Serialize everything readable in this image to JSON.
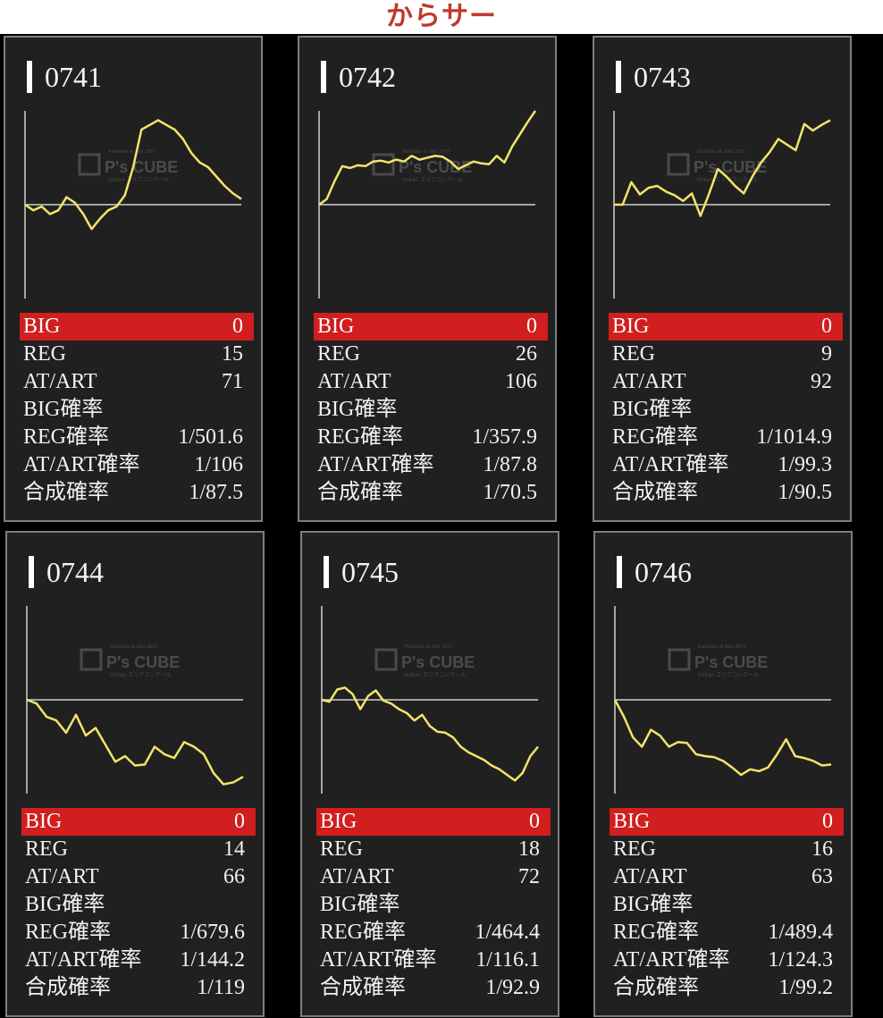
{
  "page": {
    "title": "からサー",
    "title_color": "#c0392b"
  },
  "colors": {
    "panel_bg": "#202020",
    "line": "#f3e46a",
    "axis": "#cfcfcf",
    "big_row": "#d11e1e"
  },
  "watermark": {
    "brand": "P's CUBE",
    "top_text": "Pachinko & Slot 2015",
    "sub_text": "mikan エリアコンクール"
  },
  "labels": {
    "big": "BIG",
    "reg": "REG",
    "at": "AT/ART",
    "big_rate": "BIG確率",
    "reg_rate": "REG確率",
    "at_rate": "AT/ART確率",
    "total_rate": "合成確率"
  },
  "chart_data": [
    {
      "type": "line",
      "title": "0741",
      "x": [
        0,
        1,
        2,
        3,
        4,
        5,
        6,
        7,
        8,
        9,
        10,
        11,
        12,
        13,
        14,
        15,
        16,
        17,
        18,
        19,
        20,
        21,
        22,
        23,
        24,
        25,
        26
      ],
      "y": [
        0,
        -60,
        -20,
        -100,
        -60,
        80,
        20,
        -100,
        -260,
        -150,
        -60,
        -20,
        100,
        400,
        800,
        850,
        900,
        850,
        800,
        700,
        550,
        450,
        400,
        300,
        200,
        120,
        60
      ],
      "ylim": [
        -1000,
        1000
      ],
      "baseline": 0
    },
    {
      "type": "line",
      "title": "0742",
      "x": [
        0,
        1,
        2,
        3,
        4,
        5,
        6,
        7,
        8,
        9,
        10,
        11,
        12,
        13,
        14,
        15,
        16,
        17,
        18,
        19,
        20,
        21,
        22,
        23,
        24,
        25,
        26,
        27,
        28
      ],
      "y": [
        0,
        60,
        250,
        410,
        390,
        420,
        410,
        460,
        470,
        450,
        480,
        460,
        520,
        480,
        500,
        520,
        510,
        460,
        380,
        420,
        460,
        440,
        430,
        520,
        450,
        620,
        750,
        880,
        1000
      ],
      "ylim": [
        -1000,
        1000
      ],
      "baseline": 0
    },
    {
      "type": "line",
      "title": "0743",
      "x": [
        0,
        1,
        2,
        3,
        4,
        5,
        6,
        7,
        8,
        9,
        10,
        11,
        12,
        13,
        14,
        15,
        16,
        17,
        18,
        19,
        20,
        21,
        22,
        23,
        24,
        25
      ],
      "y": [
        0,
        0,
        240,
        110,
        180,
        200,
        140,
        100,
        40,
        120,
        -120,
        120,
        380,
        300,
        200,
        120,
        300,
        450,
        560,
        700,
        640,
        580,
        860,
        790,
        850,
        900
      ],
      "ylim": [
        -1000,
        1000
      ],
      "baseline": 0
    },
    {
      "type": "line",
      "title": "0744",
      "x": [
        0,
        1,
        2,
        3,
        4,
        5,
        6,
        7,
        8,
        9,
        10,
        11,
        12,
        13,
        14,
        15,
        16,
        17,
        18,
        19,
        20,
        21,
        22
      ],
      "y": [
        0,
        -40,
        -180,
        -220,
        -350,
        -160,
        -380,
        -300,
        -480,
        -660,
        -600,
        -700,
        -690,
        -500,
        -580,
        -620,
        -450,
        -500,
        -580,
        -780,
        -900,
        -880,
        -820
      ],
      "ylim": [
        -1000,
        1000
      ],
      "baseline": 0
    },
    {
      "type": "line",
      "title": "0745",
      "x": [
        0,
        1,
        2,
        3,
        4,
        5,
        6,
        7,
        8,
        9,
        10,
        11,
        12,
        13,
        14,
        15,
        16,
        17,
        18,
        19,
        20,
        21,
        22,
        23,
        24,
        25,
        26,
        27,
        28
      ],
      "y": [
        0,
        -20,
        110,
        130,
        60,
        -100,
        40,
        100,
        -10,
        -40,
        -100,
        -140,
        -220,
        -160,
        -280,
        -340,
        -350,
        -400,
        -500,
        -560,
        -600,
        -640,
        -700,
        -740,
        -800,
        -860,
        -780,
        -600,
        -500
      ],
      "ylim": [
        -1000,
        1000
      ],
      "baseline": 0
    },
    {
      "type": "line",
      "title": "0746",
      "x": [
        0,
        1,
        2,
        3,
        4,
        5,
        6,
        7,
        8,
        9,
        10,
        11,
        12,
        13,
        14,
        15,
        16,
        17,
        18,
        19,
        20,
        21,
        22,
        23,
        24
      ],
      "y": [
        0,
        -180,
        -400,
        -500,
        -320,
        -380,
        -500,
        -450,
        -460,
        -580,
        -600,
        -610,
        -650,
        -720,
        -800,
        -740,
        -760,
        -720,
        -580,
        -420,
        -600,
        -620,
        -650,
        -700,
        -690
      ],
      "ylim": [
        -1000,
        1000
      ],
      "baseline": 0
    }
  ],
  "panels": [
    {
      "id": "0741",
      "big": "0",
      "reg": "15",
      "at": "71",
      "big_rate": "",
      "reg_rate": "1/501.6",
      "at_rate": "1/106",
      "total_rate": "1/87.5"
    },
    {
      "id": "0742",
      "big": "0",
      "reg": "26",
      "at": "106",
      "big_rate": "",
      "reg_rate": "1/357.9",
      "at_rate": "1/87.8",
      "total_rate": "1/70.5"
    },
    {
      "id": "0743",
      "big": "0",
      "reg": "9",
      "at": "92",
      "big_rate": "",
      "reg_rate": "1/1014.9",
      "at_rate": "1/99.3",
      "total_rate": "1/90.5"
    },
    {
      "id": "0744",
      "big": "0",
      "reg": "14",
      "at": "66",
      "big_rate": "",
      "reg_rate": "1/679.6",
      "at_rate": "1/144.2",
      "total_rate": "1/119"
    },
    {
      "id": "0745",
      "big": "0",
      "reg": "18",
      "at": "72",
      "big_rate": "",
      "reg_rate": "1/464.4",
      "at_rate": "1/116.1",
      "total_rate": "1/92.9"
    },
    {
      "id": "0746",
      "big": "0",
      "reg": "16",
      "at": "63",
      "big_rate": "",
      "reg_rate": "1/489.4",
      "at_rate": "1/124.3",
      "total_rate": "1/99.2"
    }
  ]
}
